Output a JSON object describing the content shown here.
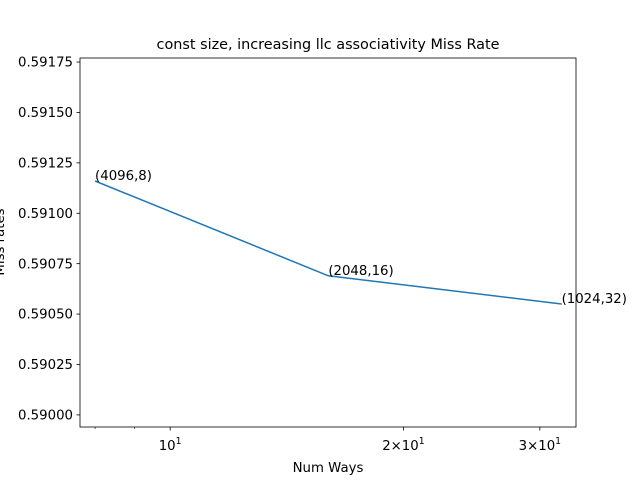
{
  "chart_data": {
    "type": "line",
    "title": "const size, increasing llc associativity Miss Rate",
    "xlabel": "Num Ways",
    "ylabel": "Miss rates",
    "xscale": "log",
    "xlim": [
      7.65,
      33.4
    ],
    "ylim": [
      0.58994,
      0.59177
    ],
    "grid": false,
    "x_ticks": [
      {
        "value": 10,
        "base": "10",
        "exp": "1",
        "coef": ""
      },
      {
        "value": 20,
        "base": "10",
        "exp": "1",
        "coef": "2×"
      },
      {
        "value": 30,
        "base": "10",
        "exp": "1",
        "coef": "3×"
      }
    ],
    "x_minor_ticks": [
      8,
      9,
      40
    ],
    "y_ticks": [
      {
        "value": 0.59,
        "label": "0.59000"
      },
      {
        "value": 0.59025,
        "label": "0.59025"
      },
      {
        "value": 0.5905,
        "label": "0.59050"
      },
      {
        "value": 0.59075,
        "label": "0.59075"
      },
      {
        "value": 0.591,
        "label": "0.59100"
      },
      {
        "value": 0.59125,
        "label": "0.59125"
      },
      {
        "value": 0.5915,
        "label": "0.59150"
      },
      {
        "value": 0.59175,
        "label": "0.59175"
      }
    ],
    "series": [
      {
        "color": "#1f77b4",
        "x": [
          8,
          16,
          32
        ],
        "y": [
          0.59116,
          0.59069,
          0.59055
        ],
        "annotations": [
          "(4096,8)",
          "(2048,16)",
          "(1024,32)"
        ]
      }
    ]
  }
}
